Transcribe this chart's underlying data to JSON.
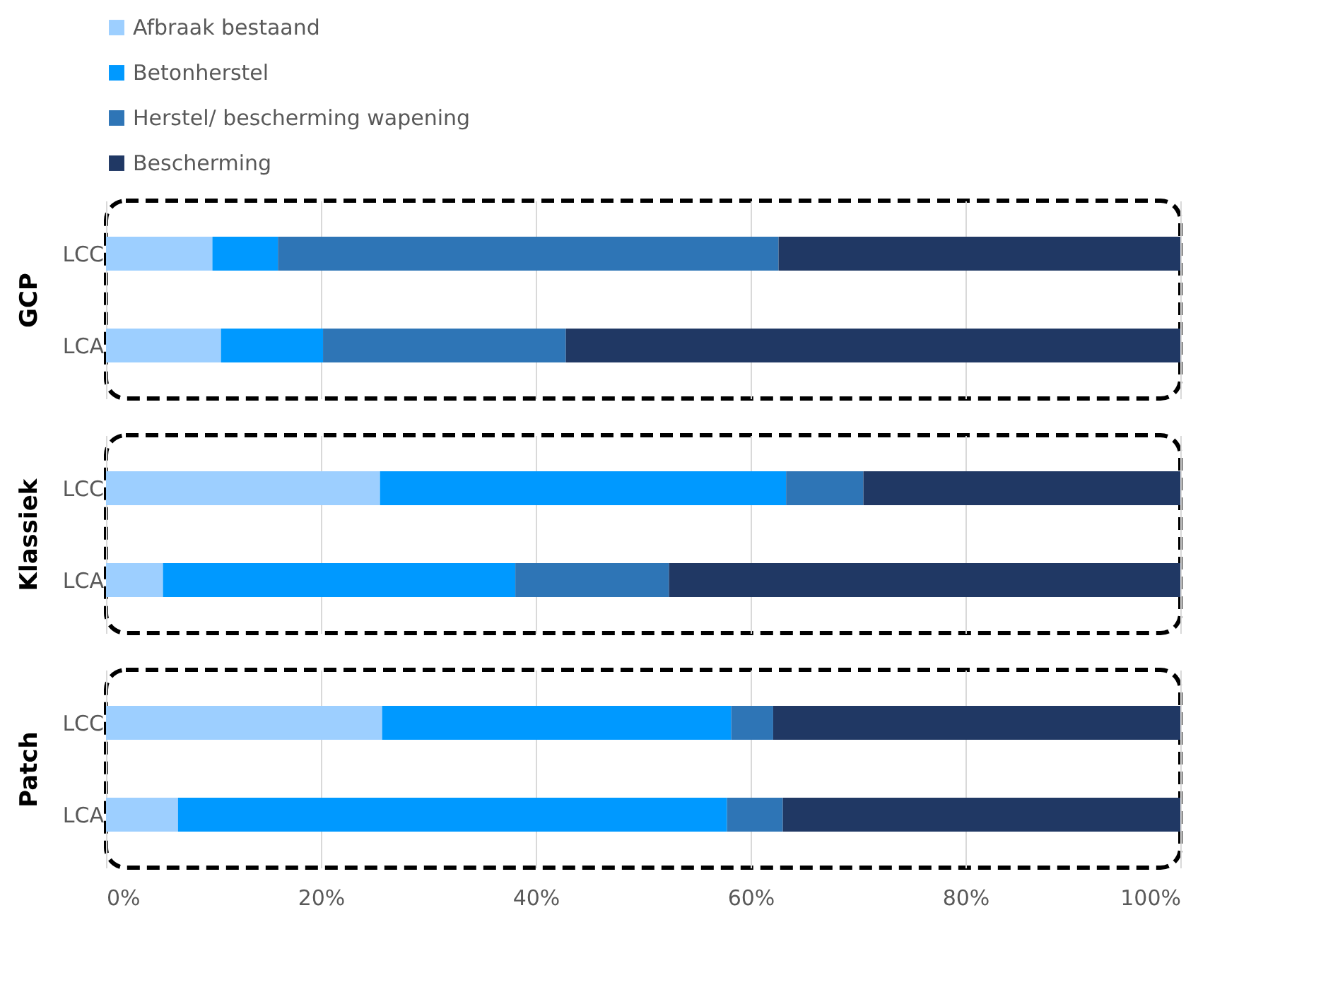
{
  "chart_data": [
    {
      "type": "bar",
      "orientation": "horizontal",
      "stacked": true,
      "ylabel": "GCP",
      "categories": [
        "LCC",
        "LCA"
      ],
      "legend": "top",
      "grid": "x",
      "tick_labels": "y",
      "xlim": [
        0,
        100
      ],
      "xticks": [
        {
          "value": 0,
          "label": null
        },
        {
          "value": 20,
          "label": null
        },
        {
          "value": 40,
          "label": null
        },
        {
          "value": 60,
          "label": null
        },
        {
          "value": 80,
          "label": null
        },
        {
          "value": 100,
          "label": null
        }
      ],
      "series": [
        {
          "name": "Afbraak bestaand",
          "color": "#9dcfff",
          "values": [
            9.9,
            10.7
          ]
        },
        {
          "name": "Betonherstel",
          "color": "#0099ff",
          "values": [
            6.1,
            9.5
          ]
        },
        {
          "name": "Herstel/ bescherming wapening",
          "color": "#2e75b6",
          "values": [
            46.6,
            22.6
          ]
        },
        {
          "name": "Bescherming",
          "color": "#203864",
          "values": [
            37.4,
            57.2
          ]
        }
      ]
    },
    {
      "type": "bar",
      "orientation": "horizontal",
      "stacked": true,
      "ylabel": "Klassiek",
      "categories": [
        "LCC",
        "LCA"
      ],
      "grid": "x",
      "tick_labels": "y",
      "xlim": [
        0,
        100
      ],
      "xticks": [
        {
          "value": 0,
          "label": null
        },
        {
          "value": 20,
          "label": null
        },
        {
          "value": 40,
          "label": null
        },
        {
          "value": 60,
          "label": null
        },
        {
          "value": 80,
          "label": null
        },
        {
          "value": 100,
          "label": null
        }
      ],
      "series": [
        {
          "color": "#9dcfff",
          "values": [
            25.5,
            5.3
          ]
        },
        {
          "color": "#0099ff",
          "values": [
            37.8,
            32.8
          ]
        },
        {
          "color": "#2e75b6",
          "values": [
            7.2,
            14.3
          ]
        },
        {
          "color": "#203864",
          "values": [
            29.5,
            47.6
          ]
        }
      ]
    },
    {
      "type": "bar",
      "orientation": "horizontal",
      "stacked": true,
      "ylabel": "Patch",
      "categories": [
        "LCC",
        "LCA"
      ],
      "grid": "x",
      "xlim": [
        0,
        100
      ],
      "xticks": [
        {
          "value": 0,
          "label": "0%"
        },
        {
          "value": 20,
          "label": "20%"
        },
        {
          "value": 40,
          "label": "40%"
        },
        {
          "value": 60,
          "label": "60%"
        },
        {
          "value": 80,
          "label": "80%"
        },
        {
          "value": 100,
          "label": "100%"
        }
      ],
      "series": [
        {
          "color": "#9dcfff",
          "values": [
            25.7,
            6.7
          ]
        },
        {
          "color": "#0099ff",
          "values": [
            32.5,
            51.1
          ]
        },
        {
          "color": "#2e75b6",
          "values": [
            3.9,
            5.2
          ]
        },
        {
          "color": "#203864",
          "values": [
            37.9,
            37.0
          ]
        }
      ]
    }
  ]
}
